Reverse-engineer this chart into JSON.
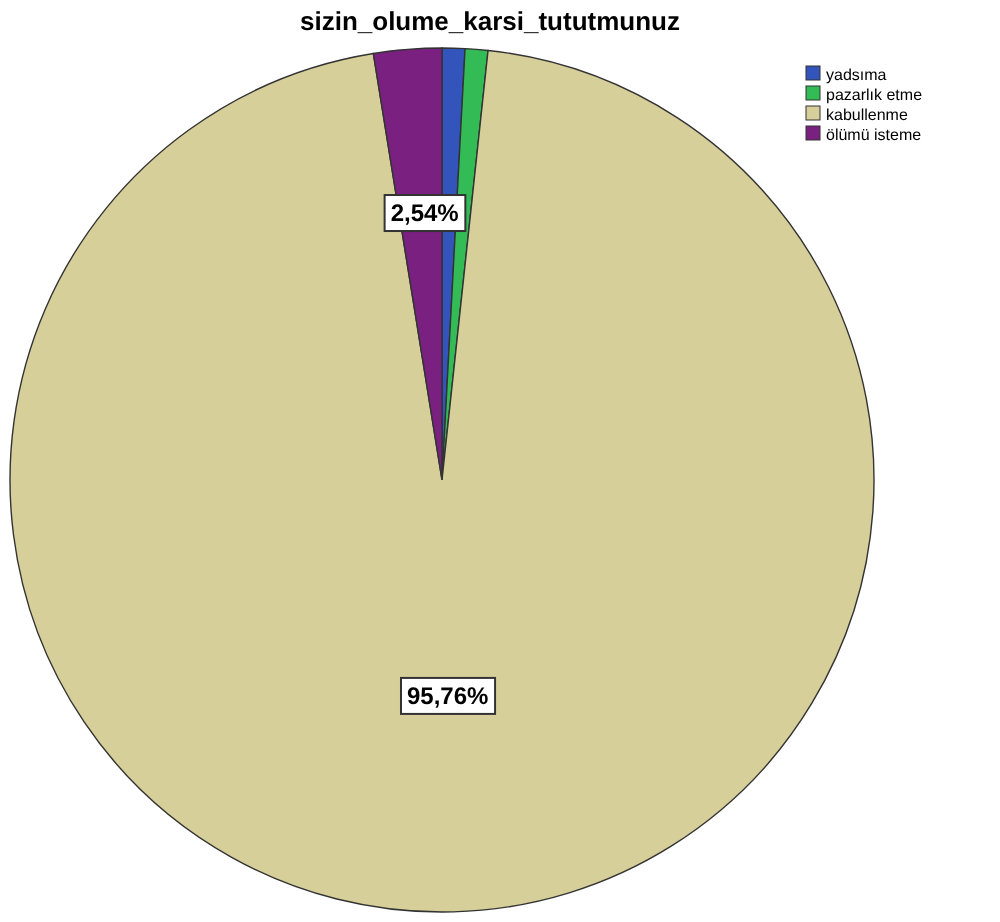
{
  "chart_data": {
    "type": "pie",
    "title": "sizin_olume_karsi_tututmunuz",
    "categories": [
      "yadsıma",
      "pazarlık etme",
      "kabullenme",
      "ölümü isteme"
    ],
    "values": [
      0.85,
      0.85,
      95.76,
      2.54
    ],
    "colors": [
      "#3355bb",
      "#33bb55",
      "#d6cf9a",
      "#7a2080"
    ],
    "value_labels": [
      null,
      null,
      "95,76%",
      "2,54%"
    ],
    "legend": "top right"
  }
}
